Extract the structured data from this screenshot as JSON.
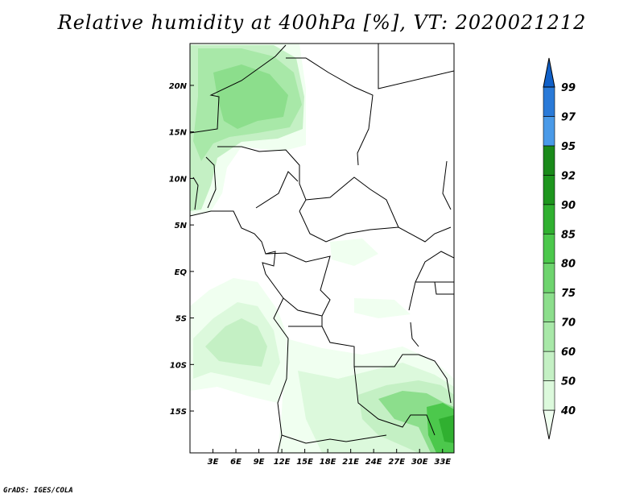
{
  "title": "Relative humidity at 400hPa [%], VT: 2020021212",
  "credit": "GrADS: IGES/COLA",
  "map": {
    "lon_range": [
      0,
      34.5
    ],
    "lat_range": [
      -19.5,
      24.5
    ],
    "lon_ticks": [
      {
        "value": 3,
        "label": "3E"
      },
      {
        "value": 6,
        "label": "6E"
      },
      {
        "value": 9,
        "label": "9E"
      },
      {
        "value": 12,
        "label": "12E"
      },
      {
        "value": 15,
        "label": "15E"
      },
      {
        "value": 18,
        "label": "18E"
      },
      {
        "value": 21,
        "label": "21E"
      },
      {
        "value": 24,
        "label": "24E"
      },
      {
        "value": 27,
        "label": "27E"
      },
      {
        "value": 30,
        "label": "30E"
      },
      {
        "value": 33,
        "label": "33E"
      }
    ],
    "lat_ticks": [
      {
        "value": 20,
        "label": "20N"
      },
      {
        "value": 15,
        "label": "15N"
      },
      {
        "value": 10,
        "label": "10N"
      },
      {
        "value": 5,
        "label": "5N"
      },
      {
        "value": 0,
        "label": "EQ"
      },
      {
        "value": -5,
        "label": "5S"
      },
      {
        "value": -10,
        "label": "10S"
      },
      {
        "value": -15,
        "label": "15S"
      }
    ]
  },
  "colorbar": {
    "levels": [
      "40",
      "50",
      "60",
      "70",
      "75",
      "80",
      "85",
      "90",
      "92",
      "95",
      "97",
      "99"
    ],
    "colors": [
      "#f0fff0",
      "#dcf9dc",
      "#c4f0c4",
      "#a8e8a8",
      "#8cde8c",
      "#6ed46e",
      "#4cc84c",
      "#30b030",
      "#1e961e",
      "#1a8a1a",
      "#4a9ae8",
      "#2a7ad8",
      "#1060c8"
    ]
  },
  "humidity_colors": {
    "c40": "#f0fff0",
    "c50": "#dcf9dc",
    "c60": "#c4f0c4",
    "c70": "#a8e8a8",
    "c75": "#8cde8c",
    "c80": "#6ed46e",
    "c85": "#4cc84c",
    "c90": "#30b030"
  }
}
